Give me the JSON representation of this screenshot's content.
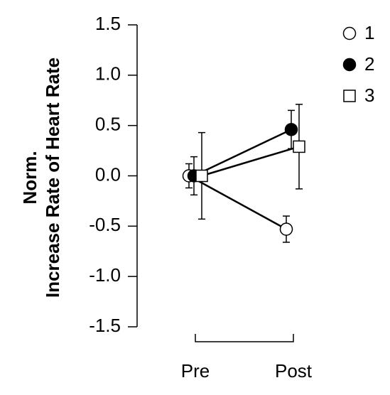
{
  "chart_data": {
    "type": "line",
    "ylabel": [
      "Norm.",
      "Increase Rate of Heart Rate"
    ],
    "categories": [
      "Pre",
      "Post"
    ],
    "ylim": [
      -1.5,
      1.5
    ],
    "yticks": [
      1.5,
      {
        "value": 1,
        "label": "1.0"
      },
      0.5,
      {
        "value": 0,
        "label": "0.0"
      },
      -0.5,
      {
        "value": -1,
        "label": "-1.0"
      },
      -1.5
    ],
    "legend": "upper right",
    "series": [
      {
        "name": "1",
        "marker": "circle",
        "color": "#ffffff",
        "values": [
          0,
          -0.53
        ],
        "errors": [
          0.12,
          0.13
        ]
      },
      {
        "name": "2",
        "marker": "circle",
        "color": "#000000",
        "values": [
          0,
          0.46
        ],
        "errors": [
          0.19,
          0.19
        ]
      },
      {
        "name": "3",
        "marker": "square",
        "color": "#ffffff",
        "values": [
          0,
          0.29
        ],
        "errors": [
          0.43,
          0.42
        ]
      }
    ]
  }
}
